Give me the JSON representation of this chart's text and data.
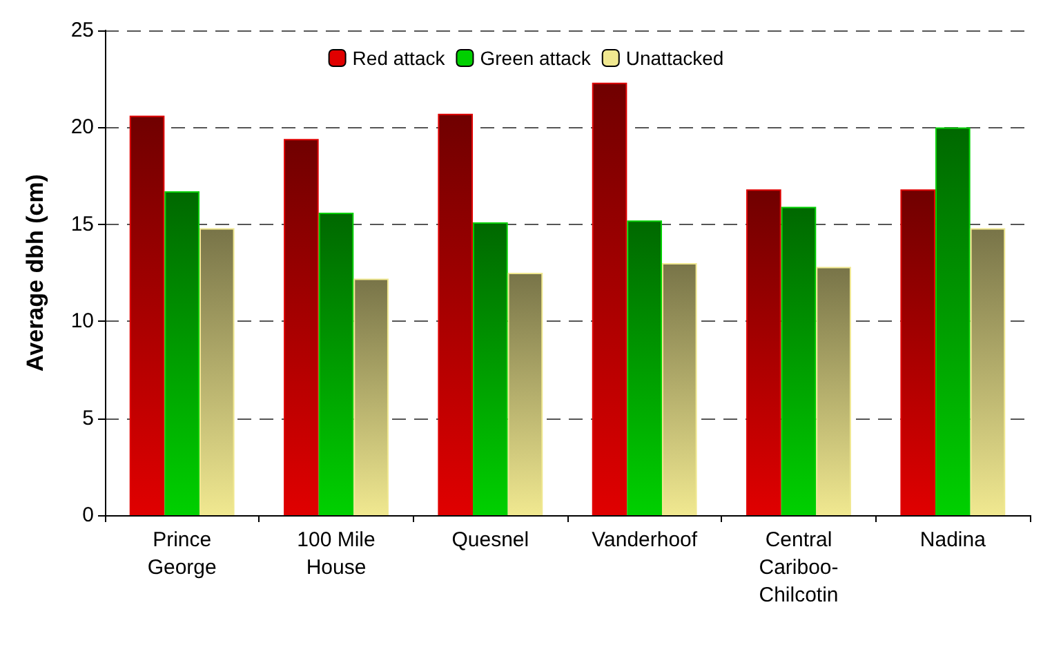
{
  "chart_data": {
    "type": "bar",
    "ylabel": "Average dbh (cm)",
    "categories": [
      "Prince\nGeorge",
      "100 Mile\nHouse",
      "Quesnel",
      "Vanderhoof",
      "Central\nCariboo-\nChilcotin",
      "Nadina"
    ],
    "series": [
      {
        "name": "Red attack",
        "color": "#e00000",
        "values": [
          20.6,
          19.4,
          20.7,
          22.3,
          16.8,
          16.8
        ]
      },
      {
        "name": "Green attack",
        "color": "#00d000",
        "values": [
          16.7,
          15.6,
          15.1,
          15.2,
          15.9,
          20.0
        ]
      },
      {
        "name": "Unattacked",
        "color": "#f0e890",
        "values": [
          14.8,
          12.2,
          12.5,
          13.0,
          12.8,
          14.8
        ]
      }
    ],
    "ylim": [
      0,
      25
    ],
    "yticks": [
      0,
      5,
      10,
      15,
      20,
      25
    ],
    "grid": "y",
    "legend": "top"
  }
}
